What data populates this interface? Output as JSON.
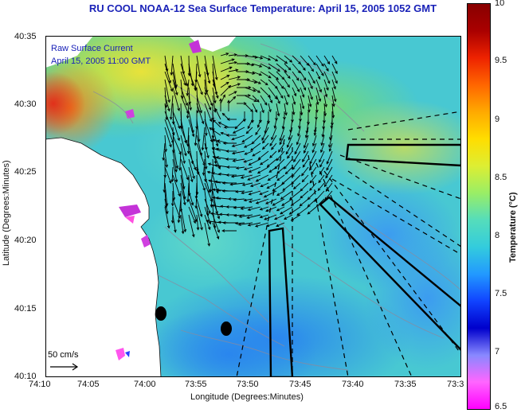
{
  "title": "RU COOL  NOAA-12  Sea Surface Temperature:  April 15, 2005 1052 GMT",
  "overlay": {
    "line1": "Raw Surface Current",
    "line2": "April 15, 2005 11:00 GMT"
  },
  "y_axis": {
    "label": "Latitude (Degrees:Minutes)",
    "ticks": [
      "40:35",
      "40:30",
      "40:25",
      "40:20",
      "40:15",
      "40:10"
    ]
  },
  "x_axis": {
    "label": "Longitude (Degrees:Minutes)",
    "ticks": [
      "74:10",
      "74:05",
      "74:00",
      "73:55",
      "73:50",
      "73:45",
      "73:40",
      "73:35",
      "73:3"
    ]
  },
  "scale_bar": {
    "label": "50 cm/s"
  },
  "colorbar": {
    "title": "Temperature (°C)",
    "ticks": [
      "10",
      "9.5",
      "9",
      "8.5",
      "8",
      "7.5",
      "7",
      "6.5"
    ],
    "min": 6.5,
    "max": 10,
    "colors": [
      "#ff00ff",
      "#ff66ff",
      "#8888ff",
      "#0000cc",
      "#1144ff",
      "#2299ff",
      "#33ccdd",
      "#55ddbb",
      "#99ee66",
      "#ddee33",
      "#ffdd00",
      "#ffaa00",
      "#ff6600",
      "#ee2200",
      "#aa0000",
      "#880000"
    ]
  }
}
